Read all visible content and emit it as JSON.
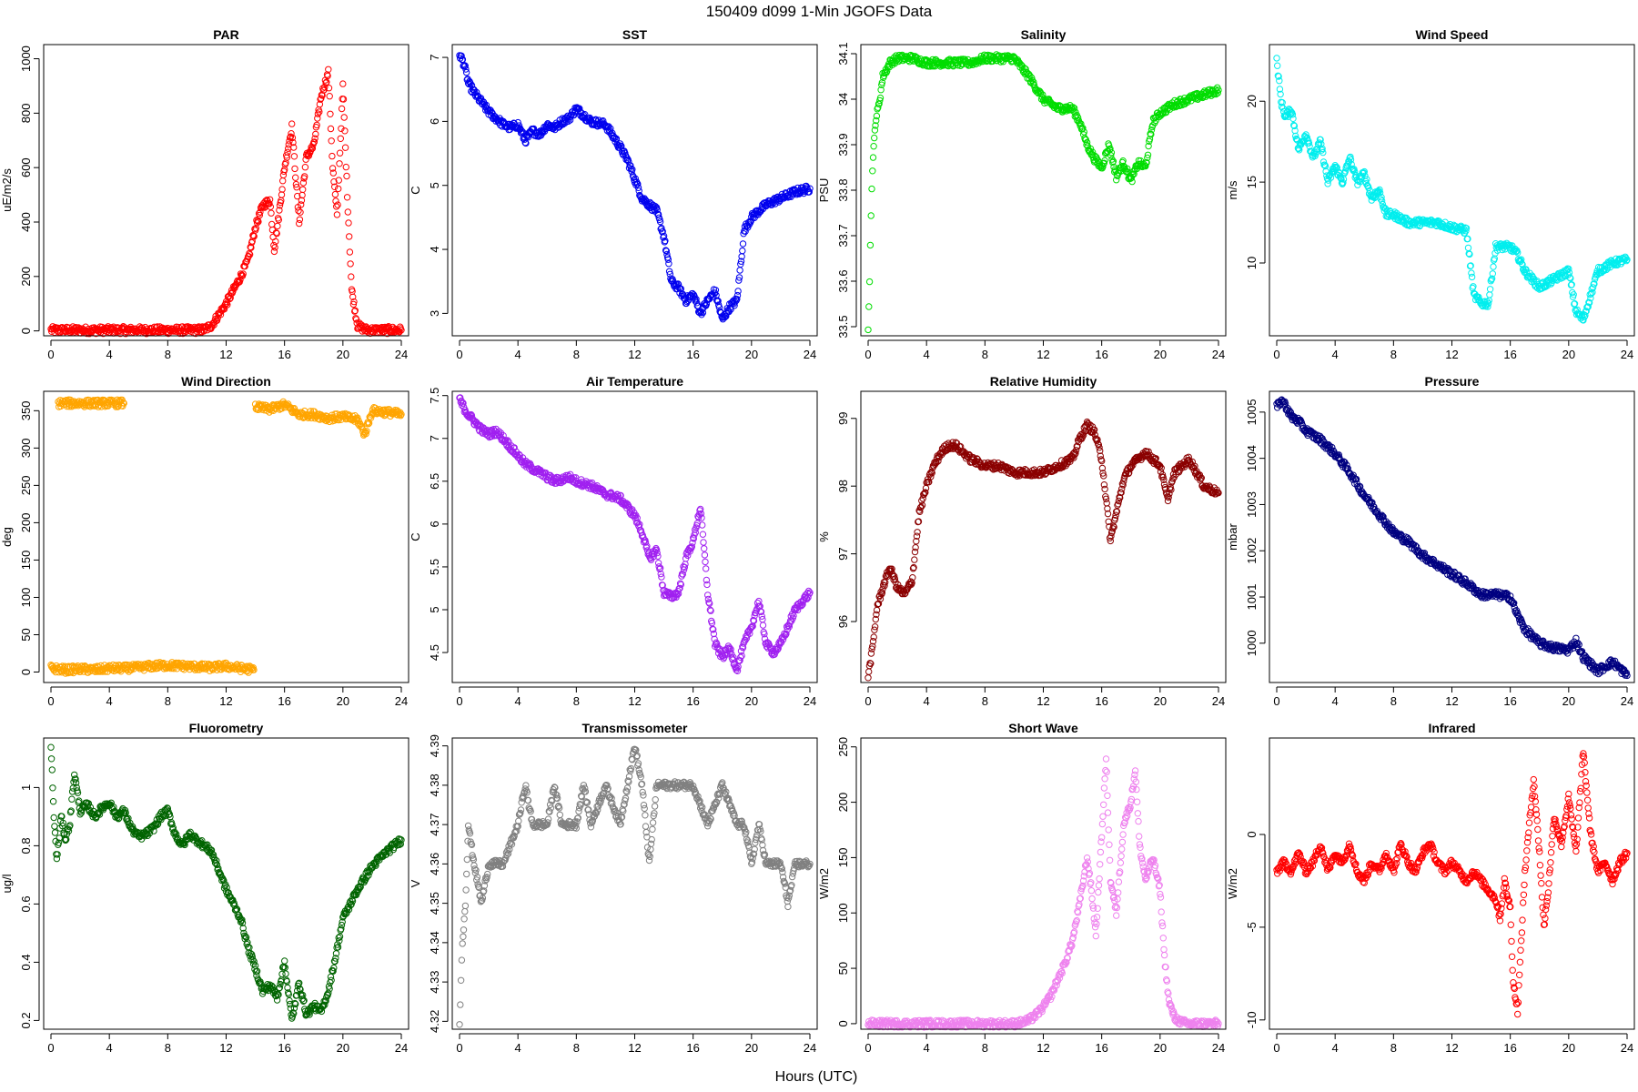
{
  "figure": {
    "title": "150409   d099   1-Min  JGOFS Data",
    "xlabel": "Hours (UTC)"
  },
  "chart_data": [
    {
      "type": "scatter",
      "title": "PAR",
      "ylabel": "uE/m2/s",
      "color": "#ff0000",
      "xlim": [
        0,
        24
      ],
      "ylim": [
        -18,
        1052
      ],
      "xticks": [
        0,
        4,
        8,
        12,
        16,
        20,
        24
      ],
      "yticks": [
        0,
        200,
        400,
        600,
        800,
        1000
      ],
      "x": [
        0,
        2,
        4,
        6,
        8,
        10,
        10.5,
        11,
        11.5,
        12,
        12.5,
        13,
        13.5,
        14,
        14.5,
        15,
        15.3,
        15.6,
        16,
        16.5,
        17,
        17.5,
        18,
        18.5,
        19,
        19.3,
        19.6,
        20,
        20.3,
        20.6,
        21,
        21.5,
        22,
        23,
        24
      ],
      "y": [
        3,
        3,
        3,
        3,
        3,
        3,
        5,
        20,
        60,
        100,
        150,
        200,
        260,
        380,
        460,
        480,
        300,
        420,
        600,
        750,
        400,
        640,
        680,
        860,
        950,
        600,
        420,
        900,
        500,
        150,
        20,
        5,
        3,
        3,
        3
      ]
    },
    {
      "type": "scatter",
      "title": "SST",
      "ylabel": "C",
      "color": "#0000ee",
      "xlim": [
        0,
        24
      ],
      "ylim": [
        2.65,
        7.2
      ],
      "xticks": [
        0,
        4,
        8,
        12,
        16,
        20,
        24
      ],
      "yticks": [
        3,
        4,
        5,
        6,
        7
      ],
      "x": [
        0,
        0.3,
        0.6,
        1,
        1.5,
        2,
        2.5,
        3,
        3.5,
        4,
        4.5,
        5,
        5.5,
        6,
        6.5,
        7,
        7.5,
        8,
        8.5,
        9,
        10,
        11,
        11.5,
        12,
        12.5,
        13,
        13.5,
        14,
        14.5,
        15,
        15.5,
        16,
        16.5,
        17,
        17.5,
        18,
        18.5,
        19,
        19.5,
        20,
        21,
        22,
        23,
        24
      ],
      "y": [
        7.05,
        6.9,
        6.6,
        6.45,
        6.3,
        6.15,
        6.05,
        5.95,
        5.9,
        5.95,
        5.7,
        5.85,
        5.8,
        5.95,
        5.9,
        6.0,
        6.05,
        6.2,
        6.1,
        6.0,
        5.95,
        5.6,
        5.4,
        5.1,
        4.8,
        4.7,
        4.6,
        4.2,
        3.5,
        3.4,
        3.2,
        3.3,
        3.0,
        3.2,
        3.35,
        2.9,
        3.1,
        3.2,
        4.3,
        4.5,
        4.7,
        4.8,
        4.9,
        4.95
      ]
    },
    {
      "type": "scatter",
      "title": "Salinity",
      "ylabel": "PSU",
      "color": "#00dd00",
      "xlim": [
        0,
        24
      ],
      "ylim": [
        33.48,
        34.12
      ],
      "xticks": [
        0,
        4,
        8,
        12,
        16,
        20,
        24
      ],
      "yticks": [
        33.5,
        33.6,
        33.7,
        33.8,
        33.9,
        34.0,
        34.1
      ],
      "x": [
        0,
        0.1,
        0.2,
        0.3,
        0.5,
        0.8,
        1,
        1.5,
        2,
        3,
        4,
        5,
        6,
        7,
        8,
        9,
        10,
        11,
        12,
        13,
        14,
        14.5,
        15,
        15.5,
        16,
        16.5,
        17,
        17.5,
        18,
        18.5,
        19,
        19.5,
        20,
        21,
        22,
        23,
        24
      ],
      "y": [
        33.5,
        33.6,
        33.75,
        33.85,
        33.95,
        34.0,
        34.05,
        34.08,
        34.09,
        34.09,
        34.08,
        34.08,
        34.08,
        34.08,
        34.09,
        34.09,
        34.09,
        34.05,
        34.0,
        33.98,
        33.98,
        33.95,
        33.9,
        33.87,
        33.85,
        33.9,
        33.83,
        33.86,
        33.82,
        33.86,
        33.85,
        33.95,
        33.97,
        33.99,
        34.0,
        34.01,
        34.02
      ]
    },
    {
      "type": "scatter",
      "title": "Wind Speed",
      "ylabel": "m/s",
      "color": "#00eeee",
      "xlim": [
        0,
        24
      ],
      "ylim": [
        5.5,
        23.5
      ],
      "xticks": [
        0,
        4,
        8,
        12,
        16,
        20,
        24
      ],
      "yticks": [
        10,
        15,
        20
      ],
      "x": [
        0,
        0.3,
        0.6,
        1,
        1.5,
        2,
        2.5,
        3,
        3.5,
        4,
        4.5,
        5,
        5.5,
        6,
        6.5,
        7,
        7.5,
        8,
        9,
        10,
        11,
        12,
        13,
        13.5,
        14,
        14.5,
        15,
        15.5,
        16,
        16.5,
        17,
        17.5,
        18,
        19,
        20,
        20.5,
        21,
        21.5,
        22,
        23,
        24
      ],
      "y": [
        22.5,
        20,
        19,
        19.5,
        17,
        18,
        16.5,
        17.5,
        15,
        16,
        15,
        16.5,
        15,
        15.5,
        14,
        14.5,
        13,
        13,
        12.5,
        12.5,
        12.5,
        12.2,
        12,
        8,
        7.5,
        7.5,
        11,
        11,
        11,
        10.5,
        9.5,
        9,
        8.5,
        9,
        9.5,
        7,
        6.5,
        8,
        9.5,
        10,
        10.2
      ]
    },
    {
      "type": "scatter",
      "title": "Wind Direction",
      "ylabel": "deg",
      "color": "#ffa500",
      "xlim": [
        0,
        24
      ],
      "ylim": [
        -14,
        376
      ],
      "xticks": [
        0,
        4,
        8,
        12,
        16,
        20,
        24
      ],
      "yticks": [
        0,
        50,
        100,
        150,
        200,
        250,
        300,
        350
      ],
      "x": [
        0,
        1,
        2,
        3,
        4,
        5,
        6,
        7,
        8,
        9,
        10,
        11,
        12,
        13,
        13.9,
        0.5,
        0.8,
        2.5,
        3,
        3.5,
        4.5,
        5,
        14,
        15,
        16,
        17,
        18,
        19,
        20,
        21,
        21.5,
        22,
        23,
        24
      ],
      "y": [
        5,
        3,
        4,
        3,
        5,
        5,
        6,
        8,
        9,
        8,
        7,
        6,
        8,
        5,
        3,
        360,
        360,
        360,
        360,
        360,
        360,
        360,
        355,
        352,
        358,
        345,
        345,
        340,
        342,
        338,
        318,
        350,
        348,
        345
      ]
    },
    {
      "type": "scatter",
      "title": "Air Temperature",
      "ylabel": "C",
      "color": "#a020f0",
      "xlim": [
        0,
        24
      ],
      "ylim": [
        4.15,
        7.55
      ],
      "xticks": [
        0,
        4,
        8,
        12,
        16,
        20,
        24
      ],
      "yticks": [
        4.5,
        5.0,
        5.5,
        6.0,
        6.5,
        7.0,
        7.5
      ],
      "x": [
        0,
        0.5,
        1,
        1.5,
        2,
        2.5,
        3,
        3.5,
        4,
        4.5,
        5,
        5.5,
        6,
        6.5,
        7,
        7.5,
        8,
        9,
        10,
        11,
        12,
        12.5,
        13,
        13.5,
        14,
        14.5,
        15,
        15.5,
        16,
        16.5,
        17,
        17.5,
        18,
        18.5,
        19,
        19.5,
        20,
        20.5,
        21,
        21.5,
        22,
        22.5,
        23,
        23.5,
        24
      ],
      "y": [
        7.45,
        7.3,
        7.2,
        7.1,
        7.05,
        7.08,
        7.0,
        6.9,
        6.8,
        6.7,
        6.65,
        6.6,
        6.55,
        6.5,
        6.52,
        6.55,
        6.5,
        6.45,
        6.35,
        6.3,
        6.1,
        5.9,
        5.6,
        5.7,
        5.2,
        5.15,
        5.2,
        5.6,
        5.8,
        6.2,
        5.2,
        4.6,
        4.45,
        4.55,
        4.3,
        4.6,
        4.8,
        5.1,
        4.6,
        4.5,
        4.6,
        4.8,
        5.0,
        5.1,
        5.2
      ]
    },
    {
      "type": "scatter",
      "title": "Relative Humidity",
      "ylabel": "%",
      "color": "#8b0000",
      "xlim": [
        0,
        24
      ],
      "ylim": [
        95.1,
        99.4
      ],
      "xticks": [
        0,
        4,
        8,
        12,
        16,
        20,
        24
      ],
      "yticks": [
        96,
        97,
        98,
        99
      ],
      "x": [
        0,
        0.3,
        0.6,
        1,
        1.5,
        2,
        2.5,
        3,
        3.5,
        4,
        4.5,
        5,
        5.5,
        6,
        6.5,
        7,
        8,
        9,
        10,
        11,
        12,
        13,
        14,
        14.5,
        15,
        15.5,
        16,
        16.3,
        16.6,
        17,
        17.5,
        18,
        18.5,
        19,
        19.5,
        20,
        20.5,
        21,
        22,
        23,
        24
      ],
      "y": [
        95.2,
        95.6,
        96.2,
        96.5,
        96.8,
        96.5,
        96.4,
        96.6,
        97.6,
        98.0,
        98.3,
        98.5,
        98.6,
        98.6,
        98.5,
        98.4,
        98.3,
        98.3,
        98.2,
        98.2,
        98.2,
        98.3,
        98.4,
        98.7,
        98.9,
        98.8,
        98.4,
        97.8,
        97.2,
        97.6,
        98.1,
        98.3,
        98.4,
        98.5,
        98.4,
        98.3,
        97.8,
        98.2,
        98.4,
        98.0,
        97.9
      ]
    },
    {
      "type": "scatter",
      "title": "Pressure",
      "ylabel": "mbar",
      "color": "#000080",
      "xlim": [
        0,
        24
      ],
      "ylim": [
        999.15,
        1005.45
      ],
      "xticks": [
        0,
        4,
        8,
        12,
        16,
        20,
        24
      ],
      "yticks": [
        1000,
        1001,
        1002,
        1003,
        1004,
        1005
      ],
      "x": [
        0,
        0.3,
        0.6,
        1,
        1.5,
        2,
        3,
        4,
        5,
        6,
        7,
        8,
        9,
        10,
        11,
        12,
        13,
        14,
        15,
        16,
        16.5,
        17,
        18,
        19,
        20,
        20.5,
        21,
        22,
        23,
        24
      ],
      "y": [
        1005.1,
        1005.25,
        1005.15,
        1004.9,
        1004.8,
        1004.6,
        1004.4,
        1004.1,
        1003.7,
        1003.2,
        1002.8,
        1002.4,
        1002.2,
        1001.9,
        1001.7,
        1001.5,
        1001.3,
        1001.05,
        1001.05,
        1001.0,
        1000.6,
        1000.3,
        1000.0,
        999.9,
        999.85,
        1000.05,
        999.7,
        999.4,
        999.6,
        999.3
      ]
    },
    {
      "type": "scatter",
      "title": "Fluorometry",
      "ylabel": "ug/l",
      "color": "#006400",
      "xlim": [
        0,
        24
      ],
      "ylim": [
        0.17,
        1.17
      ],
      "xticks": [
        0,
        4,
        8,
        12,
        16,
        20,
        24
      ],
      "yticks": [
        0.2,
        0.4,
        0.6,
        0.8,
        1.0
      ],
      "x": [
        0,
        0.2,
        0.4,
        0.7,
        1,
        1.3,
        1.6,
        2,
        2.5,
        3,
        3.5,
        4,
        4.5,
        5,
        5.5,
        6,
        6.5,
        7,
        7.5,
        8,
        8.5,
        9,
        9.5,
        10,
        11,
        12,
        12.5,
        13,
        13.5,
        14,
        14.5,
        15,
        15.5,
        16,
        16.5,
        17,
        17.5,
        18,
        18.5,
        19,
        19.5,
        20,
        20.5,
        21,
        22,
        23,
        24
      ],
      "y": [
        1.15,
        0.9,
        0.75,
        0.9,
        0.82,
        0.88,
        1.05,
        0.92,
        0.94,
        0.9,
        0.93,
        0.95,
        0.9,
        0.92,
        0.86,
        0.83,
        0.84,
        0.86,
        0.9,
        0.92,
        0.84,
        0.8,
        0.84,
        0.82,
        0.78,
        0.65,
        0.6,
        0.55,
        0.45,
        0.38,
        0.3,
        0.32,
        0.28,
        0.4,
        0.2,
        0.33,
        0.22,
        0.25,
        0.23,
        0.3,
        0.42,
        0.55,
        0.6,
        0.65,
        0.73,
        0.78,
        0.82
      ]
    },
    {
      "type": "scatter",
      "title": "Transmissometer",
      "ylabel": "V",
      "color": "#808080",
      "xlim": [
        0,
        24
      ],
      "ylim": [
        4.318,
        4.392
      ],
      "xticks": [
        0,
        4,
        8,
        12,
        16,
        20,
        24
      ],
      "yticks": [
        4.32,
        4.33,
        4.34,
        4.35,
        4.36,
        4.37,
        4.38,
        4.39
      ],
      "x": [
        0,
        0.1,
        0.2,
        0.4,
        0.6,
        1,
        1.5,
        2,
        3,
        4,
        4.5,
        5,
        6,
        6.5,
        7,
        8,
        8.5,
        9,
        10,
        11,
        11.5,
        12,
        12.5,
        13,
        13.5,
        14,
        15,
        16,
        17,
        18,
        19,
        19.5,
        20,
        20.5,
        21,
        22,
        22.5,
        23,
        24
      ],
      "y": [
        4.32,
        4.33,
        4.34,
        4.35,
        4.37,
        4.36,
        4.35,
        4.36,
        4.36,
        4.37,
        4.38,
        4.37,
        4.37,
        4.38,
        4.37,
        4.37,
        4.38,
        4.37,
        4.38,
        4.37,
        4.38,
        4.39,
        4.38,
        4.36,
        4.38,
        4.38,
        4.38,
        4.38,
        4.37,
        4.38,
        4.37,
        4.37,
        4.36,
        4.37,
        4.36,
        4.36,
        4.35,
        4.36,
        4.36
      ]
    },
    {
      "type": "scatter",
      "title": "Short Wave",
      "ylabel": "W/m2",
      "color": "#ee82ee",
      "xlim": [
        0,
        24
      ],
      "ylim": [
        -5,
        258
      ],
      "xticks": [
        0,
        4,
        8,
        12,
        16,
        20,
        24
      ],
      "yticks": [
        0,
        50,
        100,
        150,
        200,
        250
      ],
      "x": [
        0,
        2,
        4,
        6,
        8,
        10,
        10.5,
        11,
        11.5,
        12,
        12.5,
        13,
        13.5,
        14,
        14.5,
        15,
        15.3,
        15.6,
        16,
        16.3,
        16.6,
        17,
        17.5,
        18,
        18.3,
        18.6,
        19,
        19.5,
        20,
        20.3,
        20.6,
        21,
        21.5,
        22,
        23,
        24
      ],
      "y": [
        0,
        0,
        0,
        0,
        0,
        0,
        1,
        3,
        8,
        15,
        25,
        40,
        55,
        75,
        110,
        150,
        120,
        80,
        170,
        240,
        130,
        100,
        180,
        200,
        230,
        160,
        130,
        150,
        120,
        60,
        20,
        5,
        1,
        0,
        0,
        0
      ]
    },
    {
      "type": "scatter",
      "title": "Infrared",
      "ylabel": "W/m2",
      "color": "#ff0000",
      "xlim": [
        0,
        24
      ],
      "ylim": [
        -10.5,
        5.2
      ],
      "xticks": [
        0,
        4,
        8,
        12,
        16,
        20,
        24
      ],
      "yticks": [
        -10,
        -5,
        0
      ],
      "x": [
        0,
        0.5,
        1,
        1.5,
        2,
        2.5,
        3,
        3.5,
        4,
        4.5,
        5,
        5.5,
        6,
        6.5,
        7,
        7.5,
        8,
        8.5,
        9,
        9.5,
        10,
        10.5,
        11,
        11.5,
        12,
        12.5,
        13,
        13.5,
        14,
        14.5,
        15,
        15.3,
        15.6,
        16,
        16.2,
        16.5,
        17,
        17.3,
        17.6,
        18,
        18.3,
        18.6,
        19,
        19.5,
        20,
        20.5,
        21,
        21.5,
        22,
        22.5,
        23,
        23.5,
        24
      ],
      "y": [
        -2,
        -1.5,
        -2,
        -1,
        -2,
        -1.5,
        -0.5,
        -2,
        -1,
        -1.5,
        -0.5,
        -2,
        -2.5,
        -1.5,
        -2,
        -1,
        -2,
        -0.5,
        -1.5,
        -2,
        -1,
        -0.5,
        -1.5,
        -2,
        -1.5,
        -2,
        -2.5,
        -2,
        -2.5,
        -3,
        -3.5,
        -4.5,
        -2.5,
        -4,
        -8,
        -9.5,
        -2,
        0.5,
        3,
        -1,
        -5,
        -3,
        1,
        -0.5,
        2,
        -1,
        4.5,
        0,
        -2,
        -1.5,
        -2.5,
        -1.5,
        -1
      ]
    }
  ]
}
